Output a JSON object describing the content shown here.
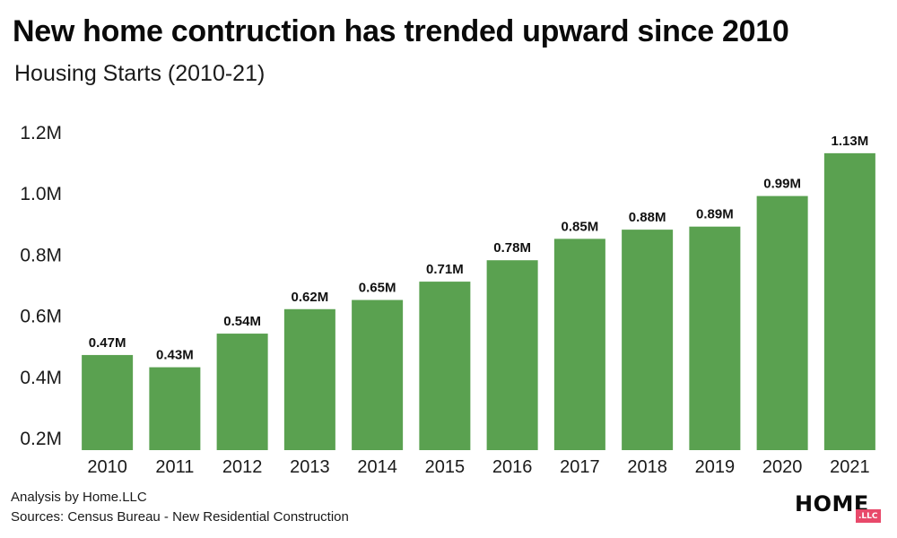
{
  "header": {
    "title": "New home contruction has trended upward since 2010",
    "subtitle": "Housing Starts (2010-21)"
  },
  "footer": {
    "analysis": "Analysis by Home.LLC",
    "sources": "Sources: Census Bureau - New Residential Construction"
  },
  "logo": {
    "word": "HOME",
    "badge": ".LLC"
  },
  "colors": {
    "bar": "#5aa150",
    "logo_badge": "#e8496a"
  },
  "chart_data": {
    "type": "bar",
    "categories": [
      "2010",
      "2011",
      "2012",
      "2013",
      "2014",
      "2015",
      "2016",
      "2017",
      "2018",
      "2019",
      "2020",
      "2021"
    ],
    "values": [
      0.47,
      0.43,
      0.54,
      0.62,
      0.65,
      0.71,
      0.78,
      0.85,
      0.88,
      0.89,
      0.99,
      1.13
    ],
    "value_labels": [
      "0.47M",
      "0.43M",
      "0.54M",
      "0.62M",
      "0.65M",
      "0.71M",
      "0.78M",
      "0.85M",
      "0.88M",
      "0.89M",
      "0.99M",
      "1.13M"
    ],
    "yticks": [
      0.2,
      0.4,
      0.6,
      0.8,
      1.0,
      1.2
    ],
    "ytick_labels": [
      "0.2M",
      "0.4M",
      "0.6M",
      "0.8M",
      "1.0M",
      "1.2M"
    ],
    "ylim": [
      0.17,
      1.3
    ],
    "grid": false,
    "title": "New home contruction has trended upward since 2010",
    "subtitle": "Housing Starts (2010-21)",
    "xlabel": "",
    "ylabel": ""
  }
}
